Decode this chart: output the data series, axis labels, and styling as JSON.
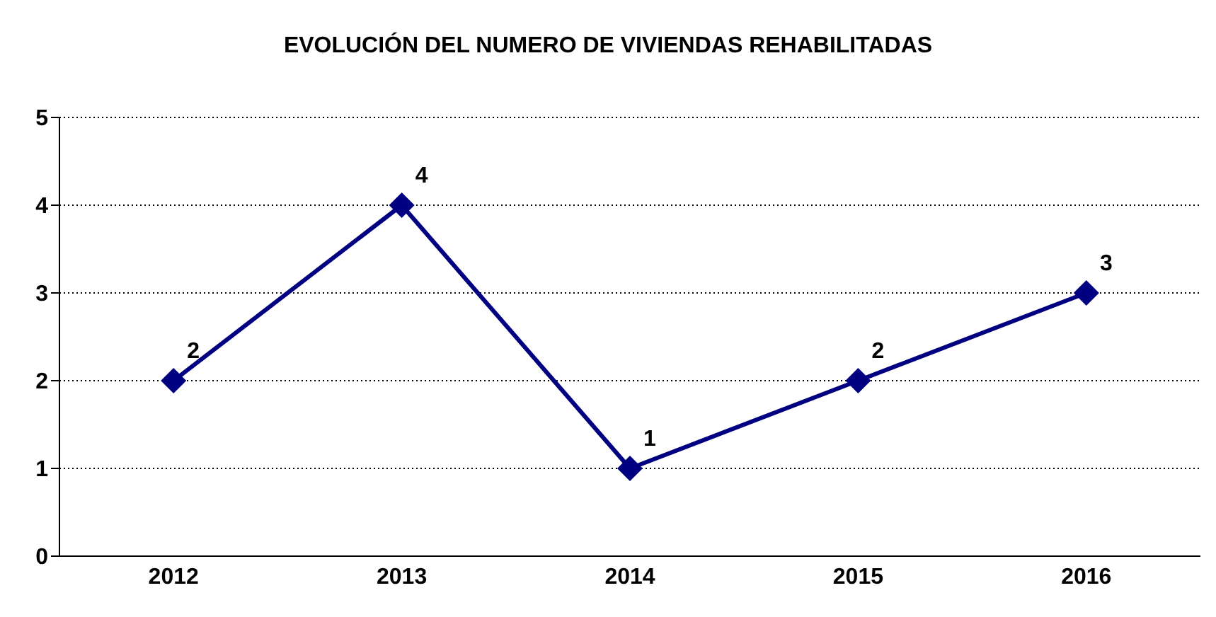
{
  "chart_data": {
    "type": "line",
    "title": "EVOLUCIÓN DEL NUMERO DE VIVIENDAS REHABILITADAS",
    "categories": [
      "2012",
      "2013",
      "2014",
      "2015",
      "2016"
    ],
    "series": [
      {
        "color": "#000080",
        "values": [
          2,
          4,
          1,
          2,
          3
        ]
      }
    ],
    "ylim": [
      0,
      5
    ],
    "yticks": [
      0,
      1,
      2,
      3,
      4,
      5
    ],
    "grid": "y",
    "marker": "diamond",
    "line_style": "solid",
    "data_labels": true,
    "legend": false
  }
}
